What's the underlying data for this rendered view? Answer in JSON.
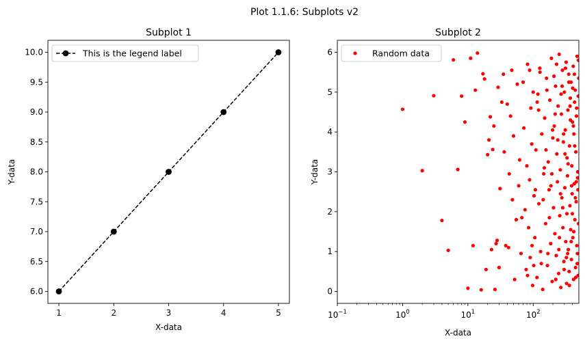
{
  "figure": {
    "suptitle": "Plot 1.1.6: Subplots v2"
  },
  "chart_data": [
    {
      "type": "line",
      "title": "Subplot 1",
      "xlabel": "X-data",
      "ylabel": "Y-data",
      "xlim": [
        0.8,
        5.2
      ],
      "ylim": [
        5.8,
        10.2
      ],
      "x_ticks": [
        1,
        2,
        3,
        4,
        5
      ],
      "x_tick_labels": [
        "1",
        "2",
        "3",
        "4",
        "5"
      ],
      "y_ticks": [
        6.0,
        6.5,
        7.0,
        7.5,
        8.0,
        8.5,
        9.0,
        9.5,
        10.0
      ],
      "y_tick_labels": [
        "6.0",
        "6.5",
        "7.0",
        "7.5",
        "8.0",
        "8.5",
        "9.0",
        "9.5",
        "10.0"
      ],
      "grid": false,
      "legend_position": "top-left",
      "series": [
        {
          "name": "This is the legend label",
          "x": [
            1,
            2,
            3,
            4,
            5
          ],
          "y": [
            6,
            7,
            8,
            9,
            10
          ],
          "color": "#000000",
          "line_style": "dashed",
          "marker": "circle"
        }
      ]
    },
    {
      "type": "scatter",
      "title": "Subplot 2",
      "xlabel": "X-data",
      "ylabel": "Y-data",
      "x_scale": "log",
      "xlim": [
        0.1,
        500
      ],
      "ylim": [
        -0.3,
        6.3
      ],
      "x_ticks": [
        0.1,
        1,
        10,
        100
      ],
      "x_tick_labels": [
        {
          "base": "10",
          "exp": "−1"
        },
        {
          "base": "10",
          "exp": "0"
        },
        {
          "base": "10",
          "exp": "1"
        },
        {
          "base": "10",
          "exp": "2"
        }
      ],
      "y_ticks": [
        0,
        1,
        2,
        3,
        4,
        5,
        6
      ],
      "y_tick_labels": [
        "0",
        "1",
        "2",
        "3",
        "4",
        "5",
        "6"
      ],
      "grid": false,
      "legend_position": "top-left",
      "series": [
        {
          "name": "Random data",
          "color": "#ff0000",
          "marker": "circle",
          "points": [
            [
              1,
              4.57
            ],
            [
              2,
              3.03
            ],
            [
              3,
              4.91
            ],
            [
              4,
              1.78
            ],
            [
              5,
              1.03
            ],
            [
              6,
              5.81
            ],
            [
              7,
              3.06
            ],
            [
              8,
              4.9
            ],
            [
              9,
              4.25
            ],
            [
              10,
              0.08
            ],
            [
              11,
              5.85
            ],
            [
              12,
              1.15
            ],
            [
              13,
              5.05
            ],
            [
              14,
              5.98
            ],
            [
              16,
              0.04
            ],
            [
              17,
              5.46
            ],
            [
              18,
              5.33
            ],
            [
              19,
              0.55
            ],
            [
              20,
              3.43
            ],
            [
              21,
              3.8
            ],
            [
              22,
              4.38
            ],
            [
              23,
              1.05
            ],
            [
              24,
              3.56
            ],
            [
              25,
              4.15
            ],
            [
              26,
              0.05
            ],
            [
              27,
              1.2
            ],
            [
              28,
              1.28
            ],
            [
              29,
              5.12
            ],
            [
              30,
              0.6
            ],
            [
              31,
              2.58
            ],
            [
              33,
              4.75
            ],
            [
              35,
              5.45
            ],
            [
              36,
              3.5
            ],
            [
              38,
              1.15
            ],
            [
              40,
              4.7
            ],
            [
              42,
              1.1
            ],
            [
              43,
              2.95
            ],
            [
              45,
              4.4
            ],
            [
              47,
              5.55
            ],
            [
              48,
              2.3
            ],
            [
              50,
              3.9
            ],
            [
              52,
              0.3
            ],
            [
              55,
              1.8
            ],
            [
              57,
              5.2
            ],
            [
              60,
              2.65
            ],
            [
              62,
              3.3
            ],
            [
              65,
              0.95
            ],
            [
              67,
              1.85
            ],
            [
              70,
              5.25
            ],
            [
              72,
              4.1
            ],
            [
              75,
              2.05
            ],
            [
              78,
              0.55
            ],
            [
              80,
              3.15
            ],
            [
              82,
              5.7
            ],
            [
              85,
              1.6
            ],
            [
              88,
              2.8
            ],
            [
              90,
              0.85
            ],
            [
              92,
              4.6
            ],
            [
              95,
              3.7
            ],
            [
              98,
              0.15
            ],
            [
              100,
              5.0
            ],
            [
              103,
              2.4
            ],
            [
              106,
              1.35
            ],
            [
              110,
              3.55
            ],
            [
              114,
              0.35
            ],
            [
              118,
              4.95
            ],
            [
              122,
              2.2
            ],
            [
              126,
              5.6
            ],
            [
              130,
              1.0
            ],
            [
              135,
              3.95
            ],
            [
              140,
              0.05
            ],
            [
              145,
              2.95
            ],
            [
              150,
              4.35
            ],
            [
              155,
              1.7
            ],
            [
              160,
              5.35
            ],
            [
              165,
              0.65
            ],
            [
              170,
              3.25
            ],
            [
              175,
              2.55
            ],
            [
              180,
              4.8
            ],
            [
              185,
              1.2
            ],
            [
              190,
              5.85
            ],
            [
              195,
              0.25
            ],
            [
              200,
              3.85
            ],
            [
              205,
              2.1
            ],
            [
              210,
              4.15
            ],
            [
              215,
              1.45
            ],
            [
              220,
              5.15
            ],
            [
              225,
              0.9
            ],
            [
              230,
              3.45
            ],
            [
              235,
              2.75
            ],
            [
              240,
              4.65
            ],
            [
              245,
              0.45
            ],
            [
              250,
              5.95
            ],
            [
              255,
              1.9
            ],
            [
              260,
              3.05
            ],
            [
              265,
              0.1
            ],
            [
              270,
              4.45
            ],
            [
              275,
              2.35
            ],
            [
              280,
              5.55
            ],
            [
              285,
              1.6
            ],
            [
              290,
              3.75
            ],
            [
              295,
              0.75
            ],
            [
              300,
              5.0
            ],
            [
              305,
              2.6
            ],
            [
              310,
              4.05
            ],
            [
              315,
              1.25
            ],
            [
              320,
              5.75
            ],
            [
              325,
              0.2
            ],
            [
              330,
              3.35
            ],
            [
              335,
              2.9
            ],
            [
              340,
              4.55
            ],
            [
              345,
              1.05
            ],
            [
              350,
              5.45
            ],
            [
              355,
              0.5
            ],
            [
              360,
              3.65
            ],
            [
              365,
              2.15
            ],
            [
              370,
              4.85
            ],
            [
              375,
              1.55
            ],
            [
              380,
              5.25
            ],
            [
              385,
              0.8
            ],
            [
              390,
              3.15
            ],
            [
              395,
              2.45
            ],
            [
              400,
              4.25
            ],
            [
              405,
              1.35
            ],
            [
              410,
              5.65
            ],
            [
              415,
              0.3
            ],
            [
              420,
              3.95
            ],
            [
              425,
              2.7
            ],
            [
              430,
              4.75
            ],
            [
              435,
              1.8
            ],
            [
              440,
              5.05
            ],
            [
              445,
              0.6
            ],
            [
              450,
              3.5
            ],
            [
              455,
              2.25
            ],
            [
              460,
              4.4
            ],
            [
              465,
              1.15
            ],
            [
              470,
              5.9
            ],
            [
              475,
              0.95
            ],
            [
              480,
              3.0
            ],
            [
              485,
              2.55
            ],
            [
              490,
              4.9
            ],
            [
              495,
              1.7
            ],
            [
              499,
              5.35
            ],
            [
              82,
              0.4
            ],
            [
              96,
              1.15
            ],
            [
              108,
              2.55
            ],
            [
              121,
              4.55
            ],
            [
              133,
              0.7
            ],
            [
              148,
              3.1
            ],
            [
              162,
              5.05
            ],
            [
              177,
              1.85
            ],
            [
              193,
              2.95
            ],
            [
              208,
              5.4
            ],
            [
              222,
              0.3
            ],
            [
              238,
              3.8
            ],
            [
              252,
              1.35
            ],
            [
              268,
              4.95
            ],
            [
              283,
              2.1
            ],
            [
              298,
              0.55
            ],
            [
              312,
              5.6
            ],
            [
              328,
              1.95
            ],
            [
              342,
              3.2
            ],
            [
              358,
              0.15
            ],
            [
              372,
              4.3
            ],
            [
              388,
              2.65
            ],
            [
              402,
              5.1
            ],
            [
              418,
              1.5
            ],
            [
              432,
              3.65
            ],
            [
              448,
              0.35
            ],
            [
              462,
              4.6
            ],
            [
              478,
              2.85
            ],
            [
              492,
              5.8
            ],
            [
              88,
              5.55
            ],
            [
              115,
              4.75
            ],
            [
              142,
              2.3
            ],
            [
              168,
              0.95
            ],
            [
              198,
              4.05
            ],
            [
              228,
              5.7
            ],
            [
              262,
              2.45
            ],
            [
              292,
              3.95
            ],
            [
              322,
              0.85
            ],
            [
              352,
              5.25
            ],
            [
              382,
              1.25
            ],
            [
              412,
              4.15
            ],
            [
              442,
              2.35
            ],
            [
              472,
              0.7
            ],
            [
              102,
              0.65
            ],
            [
              127,
              5.5
            ],
            [
              157,
              3.55
            ],
            [
              187,
              2.65
            ],
            [
              217,
              4.45
            ],
            [
              247,
              1.05
            ],
            [
              277,
              5.15
            ],
            [
              307,
              3.45
            ],
            [
              337,
              0.95
            ],
            [
              367,
              4.65
            ],
            [
              397,
              1.95
            ],
            [
              427,
              5.45
            ],
            [
              457,
              2.75
            ],
            [
              487,
              0.4
            ]
          ]
        }
      ]
    }
  ]
}
